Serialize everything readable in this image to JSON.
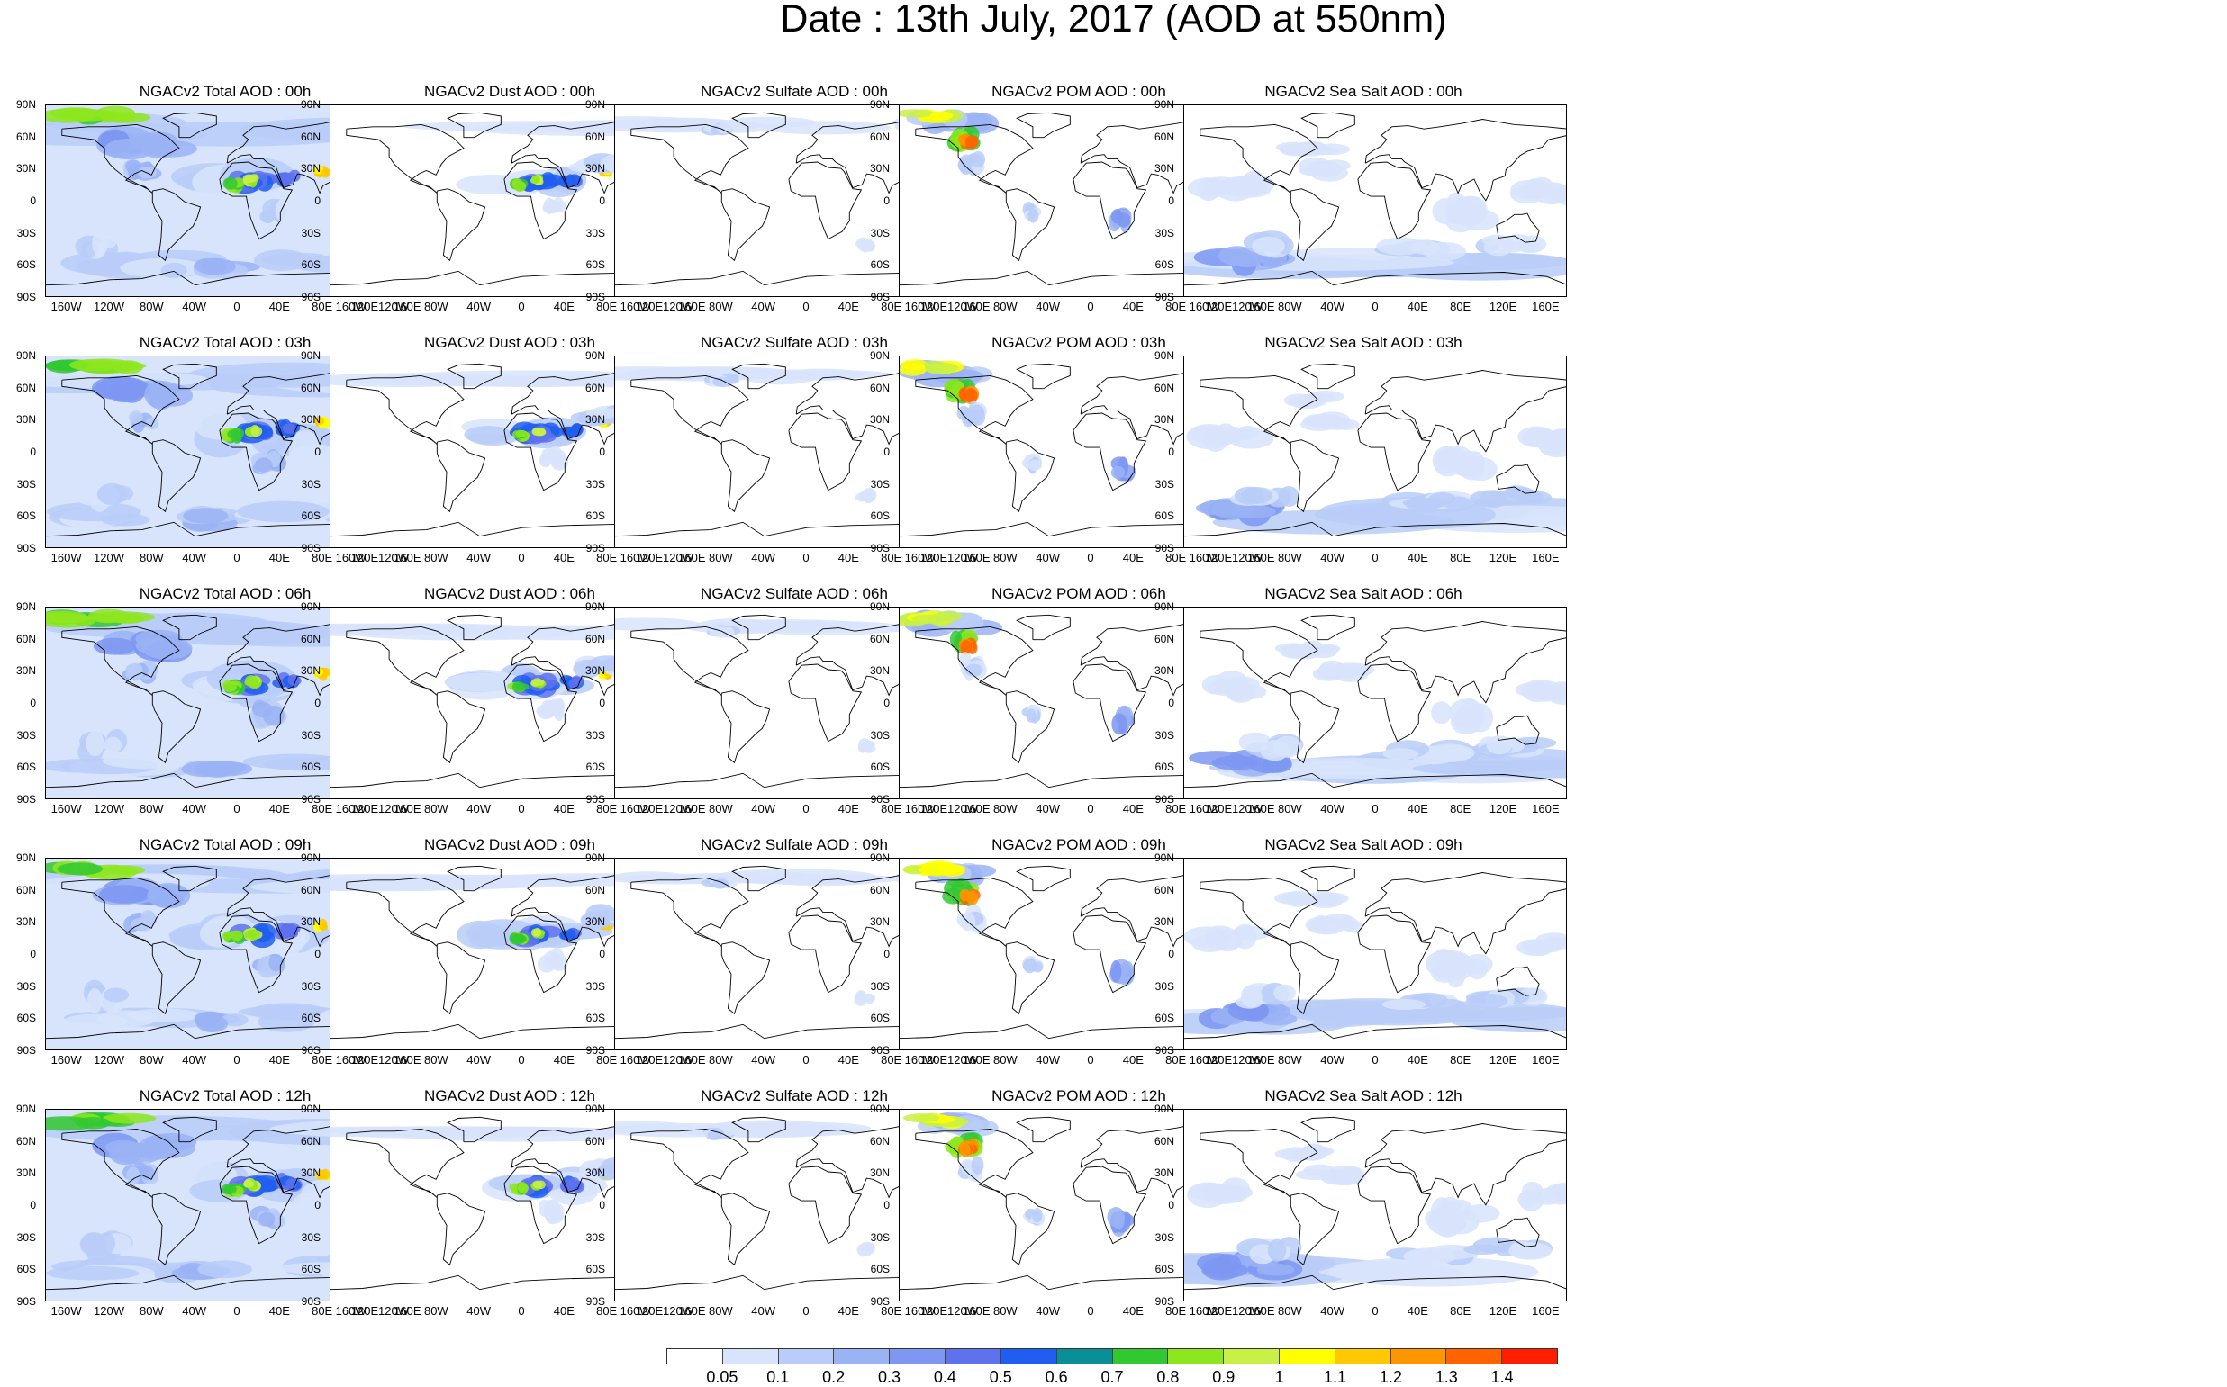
{
  "title": "Date : 13th July, 2017 (AOD at 550nm)",
  "lat_labels": [
    "90N",
    "60N",
    "30N",
    "0",
    "30S",
    "60S",
    "90S"
  ],
  "lon_labels": [
    "160W",
    "120W",
    "80W",
    "40W",
    "0",
    "40E",
    "80E",
    "120E",
    "160E"
  ],
  "panels": [
    [
      "NGACv2 Total AOD : 00h",
      "NGACv2 Dust AOD : 00h",
      "NGACv2 Sulfate AOD : 00h",
      "NGACv2 POM AOD : 00h",
      "NGACv2 Sea Salt AOD : 00h"
    ],
    [
      "NGACv2 Total AOD : 03h",
      "NGACv2 Dust AOD : 03h",
      "NGACv2 Sulfate AOD : 03h",
      "NGACv2 POM AOD : 03h",
      "NGACv2 Sea Salt AOD : 03h"
    ],
    [
      "NGACv2 Total AOD : 06h",
      "NGACv2 Dust AOD : 06h",
      "NGACv2 Sulfate AOD : 06h",
      "NGACv2 POM AOD : 06h",
      "NGACv2 Sea Salt AOD : 06h"
    ],
    [
      "NGACv2 Total AOD : 09h",
      "NGACv2 Dust AOD : 09h",
      "NGACv2 Sulfate AOD : 09h",
      "NGACv2 POM AOD : 09h",
      "NGACv2 Sea Salt  AOD : 09h"
    ],
    [
      "NGACv2 Total AOD :  12h",
      "NGACv2 Dust AOD : 12h",
      "NGACv2 Sulfate AOD : 12h",
      "NGACv2 POM  AOD : 12h",
      "NGACv2 Sea Salt AOD : 12h"
    ]
  ],
  "colorbar": {
    "labels": [
      "0.05",
      "0.1",
      "0.2",
      "0.3",
      "0.4",
      "0.5",
      "0.6",
      "0.7",
      "0.8",
      "0.9",
      "1",
      "1.1",
      "1.2",
      "1.3",
      "1.4"
    ],
    "colors": [
      "#ffffff",
      "#d8e4fb",
      "#b9cdf8",
      "#9ab3f5",
      "#7d97f2",
      "#5e72ee",
      "#1f5ef0",
      "#0a8f96",
      "#32c832",
      "#8ee61e",
      "#c8f046",
      "#ffff00",
      "#ffc800",
      "#ff9600",
      "#ff6400",
      "#ff1e00"
    ]
  }
}
